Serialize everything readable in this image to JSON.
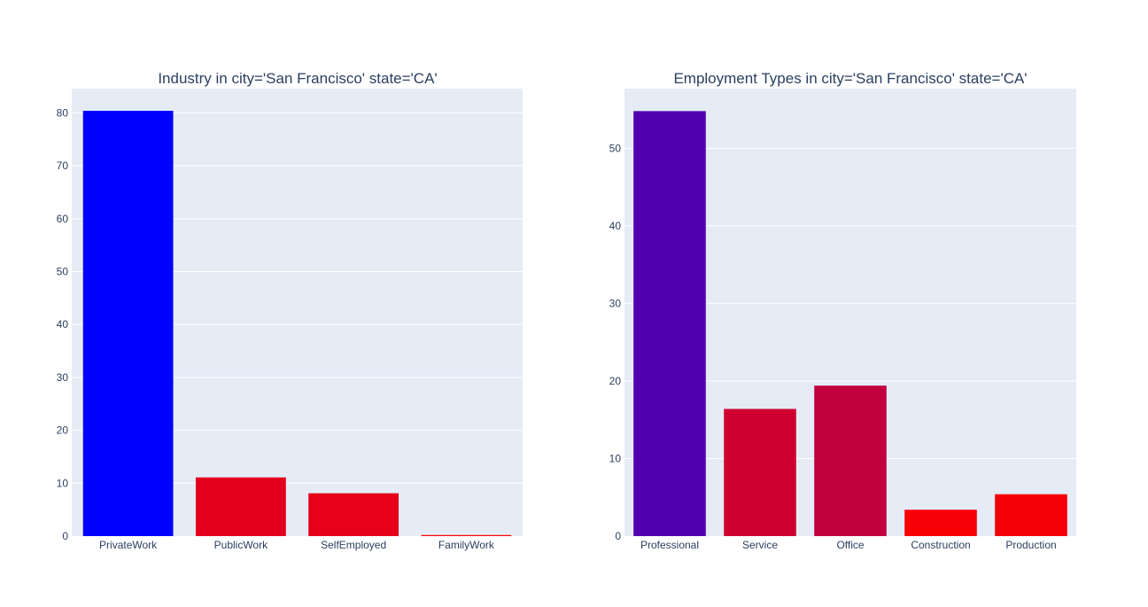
{
  "chart_data": [
    {
      "type": "bar",
      "title": "Industry in city='San Francisco' state='CA'",
      "xlabel": "",
      "ylabel": "",
      "categories": [
        "PrivateWork",
        "PublicWork",
        "SelfEmployed",
        "FamilyWork"
      ],
      "values": [
        80.4,
        11.1,
        8.1,
        0.2
      ],
      "colors": [
        "#0000ff",
        "#e2001d",
        "#e6001a",
        "#ff0000"
      ],
      "ylim": [
        0,
        84.6
      ],
      "yticks": [
        0,
        10,
        20,
        30,
        40,
        50,
        60,
        70,
        80
      ],
      "grid": true
    },
    {
      "type": "bar",
      "title": "Employment Types in city='San Francisco' state='CA'",
      "xlabel": "",
      "ylabel": "",
      "categories": [
        "Professional",
        "Service",
        "Office",
        "Construction",
        "Production"
      ],
      "values": [
        54.8,
        16.4,
        19.4,
        3.4,
        5.4
      ],
      "colors": [
        "#5100ae",
        "#cf0030",
        "#c0003f",
        "#f90006",
        "#f5000a"
      ],
      "ylim": [
        0,
        57.7
      ],
      "yticks": [
        0,
        10,
        20,
        30,
        40,
        50
      ],
      "grid": true
    }
  ]
}
